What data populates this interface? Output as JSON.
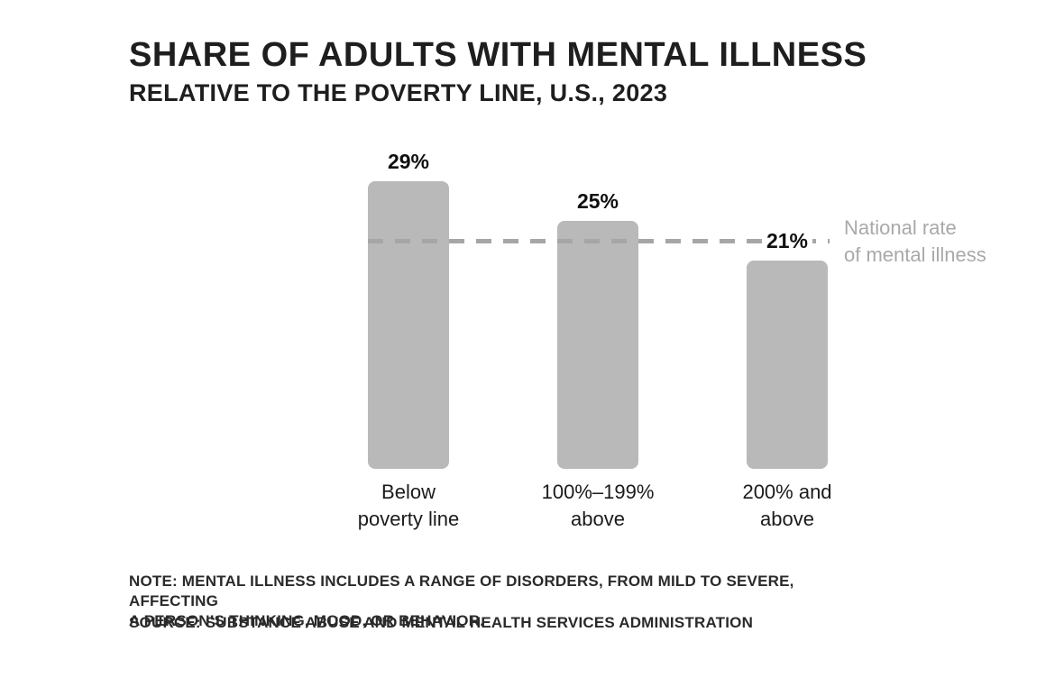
{
  "header": {
    "title": "SHARE OF ADULTS WITH MENTAL ILLNESS",
    "subtitle": "RELATIVE TO THE POVERTY LINE, U.S., 2023"
  },
  "chart_data": {
    "type": "bar",
    "title": "SHARE OF ADULTS WITH MENTAL ILLNESS",
    "subtitle": "RELATIVE TO THE POVERTY LINE, U.S., 2023",
    "categories": [
      "Below poverty line",
      "100%–199% above",
      "200% and above"
    ],
    "categories_display": [
      "Below\npoverty line",
      "100%–199%\nabove",
      "200% and\nabove"
    ],
    "values": [
      29,
      25,
      21
    ],
    "value_labels": [
      "29%",
      "25%",
      "21%"
    ],
    "unit": "percent",
    "ylim": [
      0,
      32
    ],
    "grid": false,
    "axis_ticks": "none",
    "bar_color": "#b9b9b9",
    "reference_line": {
      "label": "National rate\nof mental illness",
      "value": 23,
      "style": "dashed",
      "color": "#a6a6a6",
      "label_color": "#a9a9a9"
    }
  },
  "footer": {
    "note": "NOTE: MENTAL ILLNESS INCLUDES A RANGE OF DISORDERS, FROM MILD TO SEVERE, AFFECTING\nA PERSON’S THINKING, MOOD, OR BEHAVIOR.",
    "source": "SOURCE: SUBSTANCE ABUSE AND MENTAL HEALTH SERVICES ADMINISTRATION"
  },
  "colors": {
    "background": "#ffffff",
    "bar": "#b9b9b9",
    "dash": "#a6a6a6",
    "muted_text": "#a9a9a9",
    "dark_text": "#1e1e1e"
  }
}
